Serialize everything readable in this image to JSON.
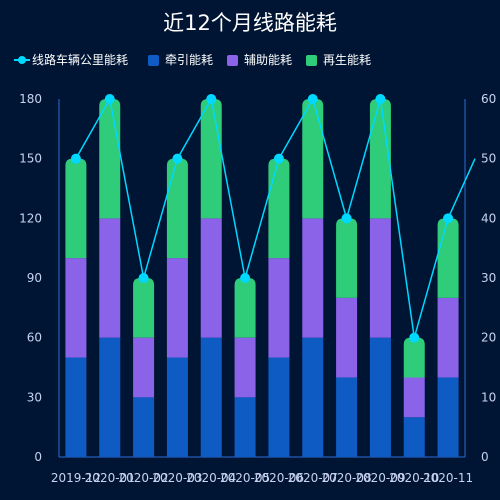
{
  "chart_data": {
    "type": "bar",
    "title": "近12个月线路能耗",
    "categories": [
      "2019-12",
      "2020-01",
      "2020-02",
      "2020-03",
      "2020-04",
      "2020-05",
      "2020-06",
      "2020-07",
      "2020-08",
      "2020-09",
      "2020-10",
      "2020-11"
    ],
    "series": [
      {
        "name": "牵引能耗",
        "type": "bar",
        "stack": true,
        "color": "#0f5bc4",
        "values": [
          50,
          60,
          30,
          50,
          60,
          30,
          50,
          60,
          40,
          60,
          20,
          40
        ]
      },
      {
        "name": "辅助能耗",
        "type": "bar",
        "stack": true,
        "color": "#8a63e8",
        "values": [
          50,
          60,
          30,
          50,
          60,
          30,
          50,
          60,
          40,
          60,
          20,
          40
        ]
      },
      {
        "name": "再生能耗",
        "type": "bar",
        "stack": true,
        "color": "#2fcc7a",
        "values": [
          50,
          60,
          30,
          50,
          60,
          30,
          50,
          60,
          40,
          60,
          20,
          40
        ]
      },
      {
        "name": "线路车辆公里能耗",
        "type": "line",
        "axis": "right",
        "color": "#00d8ff",
        "values": [
          50,
          60,
          30,
          50,
          60,
          30,
          50,
          60,
          40,
          60,
          20,
          40
        ]
      }
    ],
    "left_axis": {
      "ylim": [
        0,
        180
      ],
      "ticks": [
        0,
        30,
        60,
        90,
        120,
        150,
        180
      ]
    },
    "right_axis": {
      "ylim": [
        0,
        60
      ],
      "ticks": [
        0,
        10,
        20,
        30,
        40,
        50,
        60
      ]
    },
    "legend": {
      "placement": "top-left",
      "order": [
        "线路车辆公里能耗",
        "牵引能耗",
        "辅助能耗",
        "再生能耗"
      ]
    },
    "grid": false
  }
}
